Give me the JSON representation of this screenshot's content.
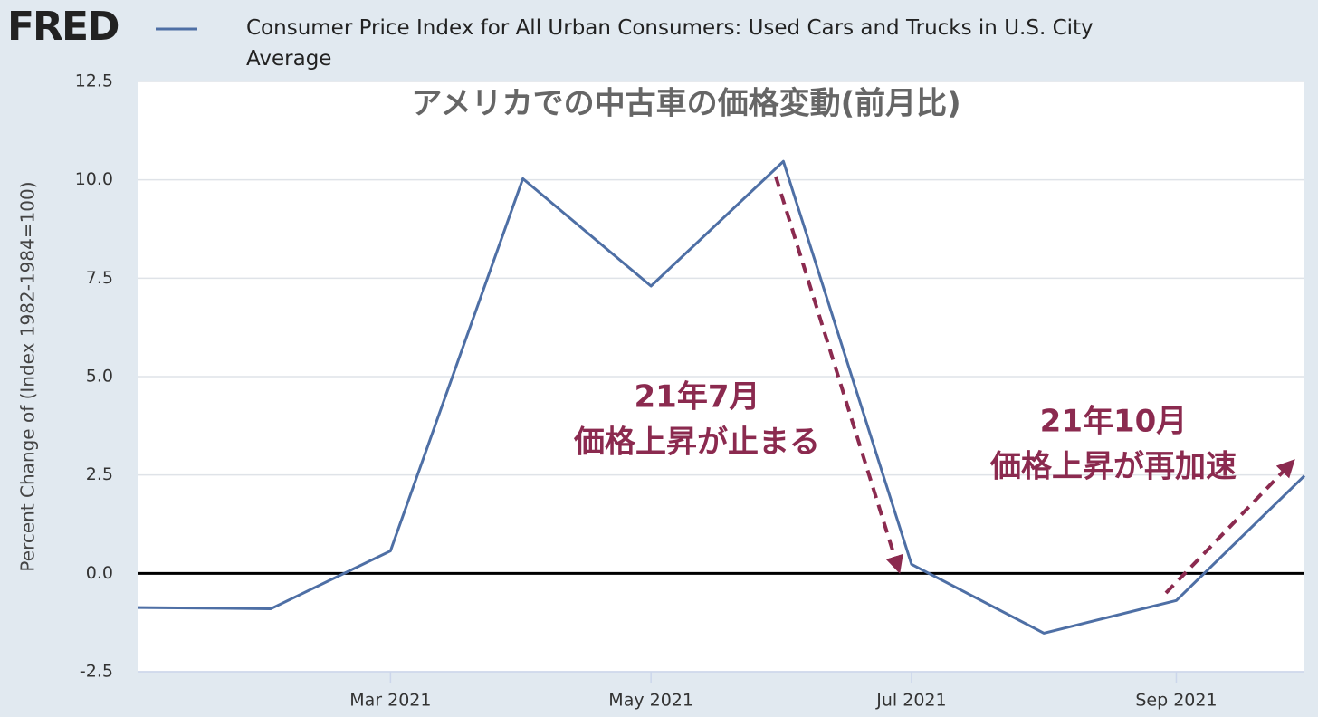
{
  "brand": "FRED",
  "chart_data": {
    "type": "line",
    "title": "アメリカでの中古車の価格変動(前月比)",
    "y_label": "Percent Change of (Index 1982-1984=100)",
    "x": [
      "2021-01",
      "2021-02",
      "2021-03",
      "2021-04",
      "2021-05",
      "2021-06",
      "2021-07",
      "2021-08",
      "2021-09",
      "2021-10"
    ],
    "series": [
      {
        "name": "Consumer Price Index for All Urban Consumers: Used Cars and Trucks in U.S. City Average",
        "color": "#4e6fa5",
        "values": [
          -0.87,
          -0.9,
          0.57,
          10.03,
          7.3,
          10.47,
          0.23,
          -1.52,
          -0.69,
          2.48
        ]
      }
    ],
    "xlim": [
      "2021-01",
      "2021-10"
    ],
    "xticks": [
      {
        "value": "2021-03",
        "label": "Mar 2021"
      },
      {
        "value": "2021-05",
        "label": "May 2021"
      },
      {
        "value": "2021-07",
        "label": "Jul 2021"
      },
      {
        "value": "2021-09",
        "label": "Sep 2021"
      }
    ],
    "ylim": [
      -2.5,
      12.5
    ],
    "yticks": [
      {
        "value": -2.5,
        "label": "-2.5"
      },
      {
        "value": 0,
        "label": "0.0"
      },
      {
        "value": 2.5,
        "label": "2.5"
      },
      {
        "value": 5,
        "label": "5.0"
      },
      {
        "value": 7.5,
        "label": "7.5"
      },
      {
        "value": 10,
        "label": "10.0"
      },
      {
        "value": 12.5,
        "label": "12.5"
      }
    ],
    "grid": true,
    "zero_line": true,
    "annotations": [
      {
        "lines": [
          "21年7月",
          "価格上昇が止まる"
        ],
        "color": "#8b2a4f"
      },
      {
        "lines": [
          "21年10月",
          "価格上昇が再加速"
        ],
        "color": "#8b2a4f"
      }
    ]
  }
}
